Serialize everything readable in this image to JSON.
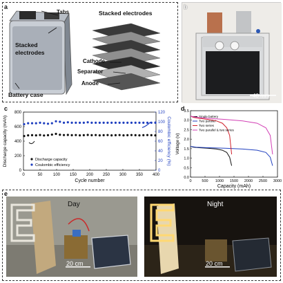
{
  "panel_a": {
    "letter": "a",
    "tabs": "Tabs",
    "stacked_left": "Stacked electrodes",
    "stacked_right": "Stacked electrodes",
    "cathode": "Cathode",
    "separator": "Separator",
    "anode": "Anode",
    "case": "Battery case"
  },
  "panel_b": {
    "letter": "b",
    "scale": "40 mm"
  },
  "panel_e": {
    "letter": "e",
    "day": "Day",
    "night": "Night",
    "scale_left": "20 cm",
    "scale_right": "20 cm"
  },
  "colors": {
    "black_series": "#111111",
    "blue_series": "#1f3fbf",
    "red_series": "#d0202a",
    "magenta_series": "#d23fb5"
  },
  "chart_data": [
    {
      "type": "scatter",
      "panel": "c",
      "xlabel": "Cycle number",
      "ylabel": "Discharge capacity (mAh)",
      "y2label": "Coulombic efficiency (%)",
      "xlim": [
        0,
        400
      ],
      "ylim": [
        0,
        800
      ],
      "y2lim": [
        0,
        120
      ],
      "xticks": [
        "0",
        "50",
        "100",
        "150",
        "200",
        "250",
        "300",
        "350",
        "400"
      ],
      "yticks": [
        "0",
        "200",
        "400",
        "600",
        "800"
      ],
      "y2ticks": [
        "0",
        "20",
        "40",
        "60",
        "80",
        "100",
        "120"
      ],
      "legend": [
        "Discharge capacity",
        "Coulombic efficiency"
      ],
      "series": [
        {
          "name": "Discharge capacity",
          "axis": "left",
          "x": [
            2,
            14,
            26,
            38,
            50,
            62,
            74,
            86,
            98,
            110,
            122,
            134,
            146,
            158,
            170,
            182,
            194,
            206,
            218,
            230,
            242,
            254,
            266,
            278,
            290,
            302,
            314,
            326,
            338,
            350,
            362,
            374,
            386,
            398
          ],
          "values": [
            470,
            480,
            482,
            480,
            485,
            478,
            482,
            490,
            500,
            488,
            484,
            486,
            482,
            484,
            480,
            482,
            486,
            482,
            484,
            480,
            482,
            484,
            480,
            482,
            484,
            480,
            482,
            484,
            482,
            480,
            482,
            484,
            482,
            480
          ]
        },
        {
          "name": "Coulombic efficiency",
          "axis": "right",
          "x": [
            2,
            14,
            26,
            38,
            50,
            62,
            74,
            86,
            98,
            110,
            122,
            134,
            146,
            158,
            170,
            182,
            194,
            206,
            218,
            230,
            242,
            254,
            266,
            278,
            290,
            302,
            314,
            326,
            338,
            350,
            362,
            374,
            386,
            398
          ],
          "values": [
            95,
            97,
            97,
            97,
            98,
            97,
            96,
            97,
            101,
            100,
            98,
            99,
            98,
            98,
            98,
            98,
            99,
            98,
            98,
            98,
            98,
            98,
            98,
            98,
            98,
            98,
            98,
            98,
            98,
            98,
            98,
            98,
            98,
            98
          ]
        }
      ]
    },
    {
      "type": "line",
      "panel": "d",
      "xlabel": "Capacity (mAh)",
      "ylabel": "Voltage (v)",
      "xlim": [
        0,
        3000
      ],
      "ylim": [
        0,
        3.5
      ],
      "xticks": [
        "0",
        "500",
        "1000",
        "1500",
        "2000",
        "2500",
        "3000"
      ],
      "yticks": [
        "0.0",
        "0.5",
        "1.0",
        "1.5",
        "2.0",
        "2.5",
        "3.0",
        "3.5"
      ],
      "legend_position": "top-left",
      "series": [
        {
          "name": "Single battery",
          "color": "#111111",
          "x": [
            0,
            100,
            300,
            600,
            900,
            1100,
            1250,
            1350,
            1420
          ],
          "y": [
            1.62,
            1.58,
            1.55,
            1.52,
            1.48,
            1.42,
            1.3,
            1.05,
            0.6
          ]
        },
        {
          "name": "Two parallel",
          "color": "#1f3fbf",
          "x": [
            0,
            200,
            600,
            1200,
            1800,
            2300,
            2600,
            2750,
            2830
          ],
          "y": [
            1.62,
            1.58,
            1.55,
            1.52,
            1.48,
            1.42,
            1.3,
            1.05,
            0.6
          ]
        },
        {
          "name": "Two series",
          "color": "#d0202a",
          "x": [
            0,
            100,
            300,
            600,
            900,
            1100,
            1250,
            1350,
            1420
          ],
          "y": [
            3.22,
            3.15,
            3.1,
            3.04,
            2.96,
            2.84,
            2.6,
            2.2,
            1.2
          ]
        },
        {
          "name": "Two parallel & two series",
          "color": "#d23fb5",
          "x": [
            0,
            200,
            600,
            1200,
            1800,
            2300,
            2600,
            2750,
            2830
          ],
          "y": [
            3.22,
            3.15,
            3.1,
            3.04,
            2.96,
            2.84,
            2.6,
            2.2,
            1.2
          ]
        }
      ]
    }
  ]
}
